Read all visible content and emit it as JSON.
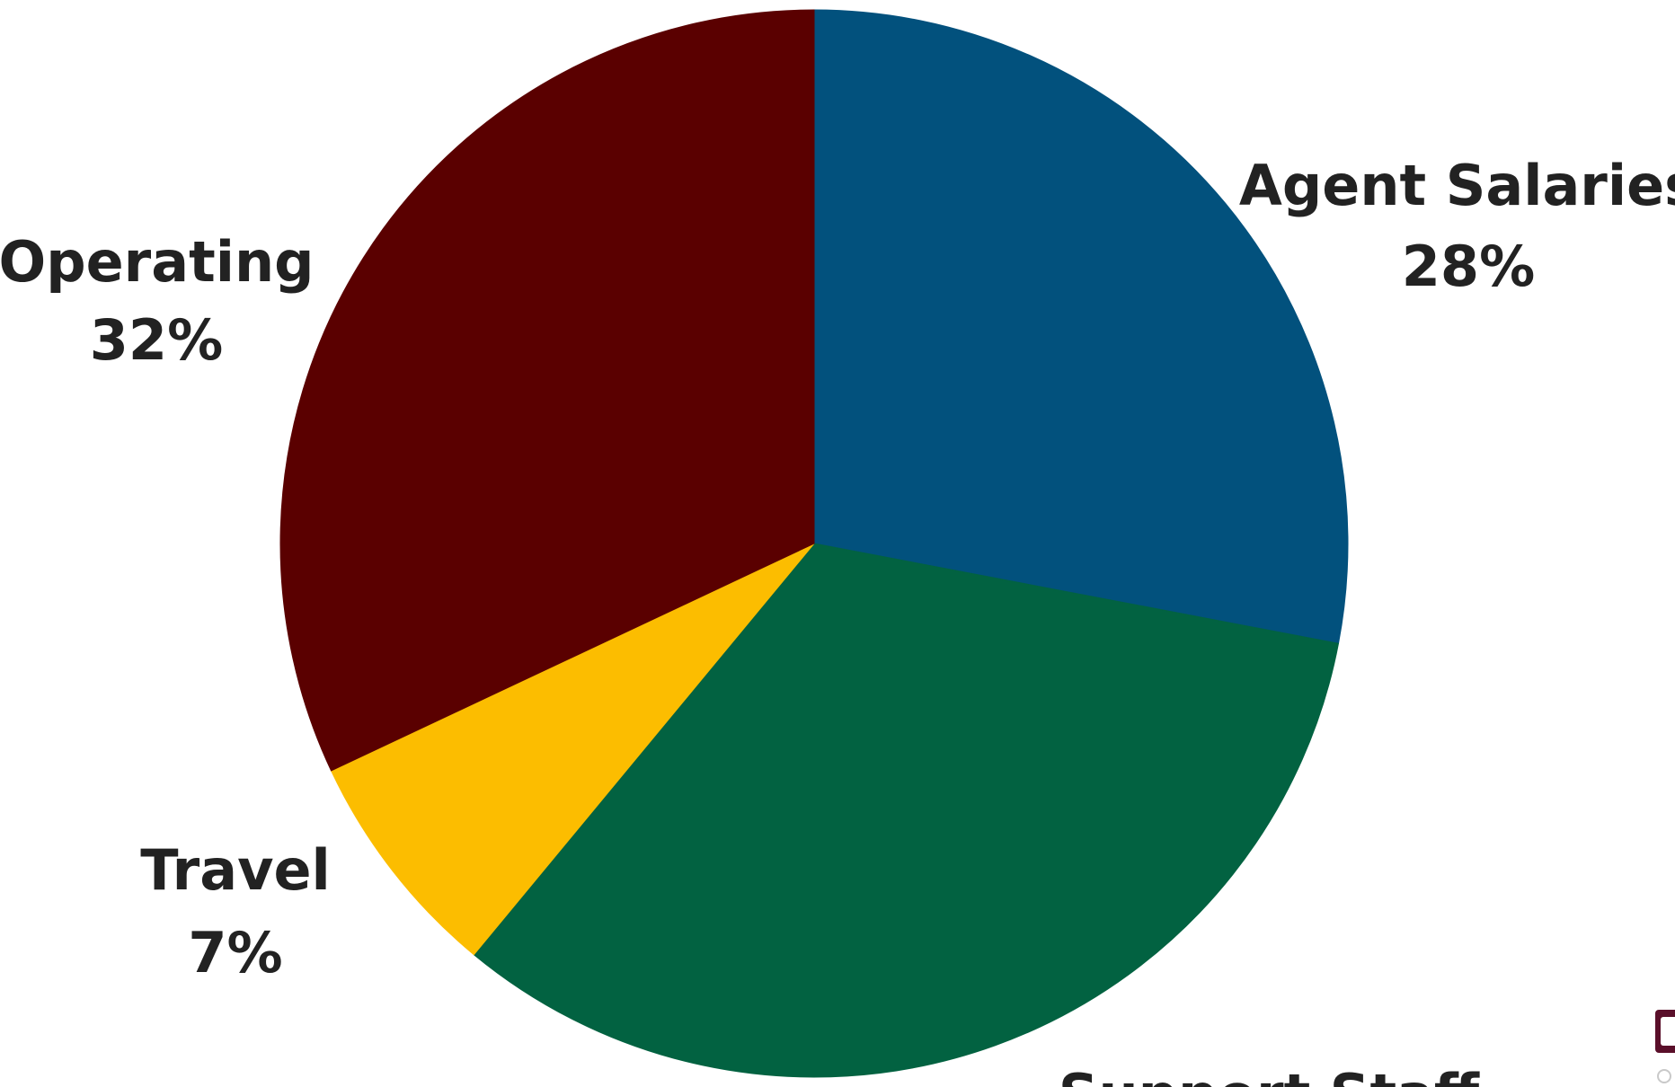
{
  "chart_data": {
    "type": "pie",
    "start_angle_deg": 0,
    "direction": "clockwise",
    "slices": [
      {
        "name": "Agent Salaries",
        "value": 28,
        "label": "28%",
        "color": "#02517d"
      },
      {
        "name": "Support Staff",
        "value": 33,
        "label": "",
        "color": "#026241"
      },
      {
        "name": "Travel",
        "value": 7,
        "label": "7%",
        "color": "#fcbd00"
      },
      {
        "name": "Operating",
        "value": 32,
        "label": "32%",
        "color": "#5a0000"
      }
    ]
  }
}
